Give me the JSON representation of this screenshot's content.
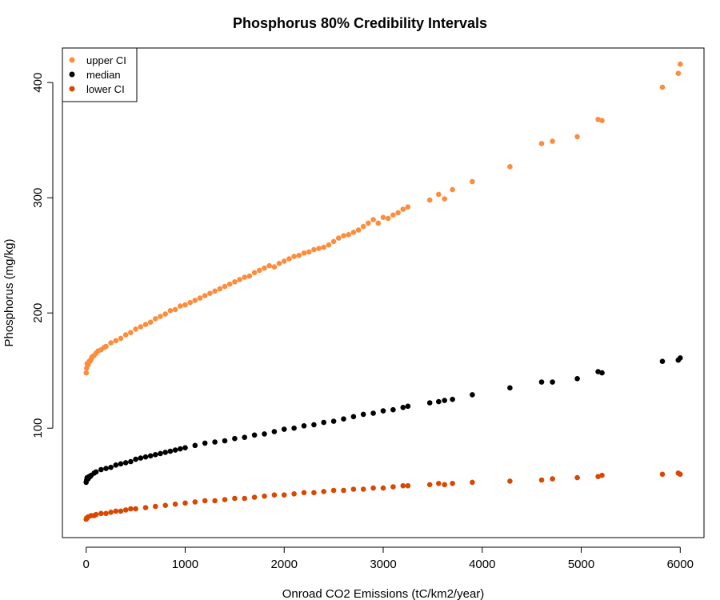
{
  "chart_data": {
    "type": "scatter",
    "title": "Phosphorus 80% Credibility Intervals",
    "xlabel": "Onroad CO2 Emissions (tC/km2/year)",
    "ylabel": "Phosphorus (mg/kg)",
    "xlim": [
      -240,
      6240
    ],
    "ylim": [
      5,
      430
    ],
    "xticks": [
      0,
      1000,
      2000,
      3000,
      4000,
      5000,
      6000
    ],
    "yticks": [
      100,
      200,
      300,
      400
    ],
    "grid": false,
    "legend_position": "top-left",
    "series": [
      {
        "name": "upper CI",
        "color": "#fd8d3c",
        "points": [
          [
            0,
            148
          ],
          [
            5,
            152
          ],
          [
            10,
            156
          ],
          [
            20,
            155
          ],
          [
            30,
            158
          ],
          [
            40,
            158
          ],
          [
            50,
            160
          ],
          [
            60,
            162
          ],
          [
            80,
            163
          ],
          [
            100,
            165
          ],
          [
            120,
            167
          ],
          [
            150,
            168
          ],
          [
            180,
            170
          ],
          [
            200,
            171
          ],
          [
            250,
            174
          ],
          [
            300,
            176
          ],
          [
            350,
            178
          ],
          [
            400,
            181
          ],
          [
            450,
            183
          ],
          [
            500,
            186
          ],
          [
            550,
            188
          ],
          [
            600,
            190
          ],
          [
            650,
            192
          ],
          [
            700,
            195
          ],
          [
            750,
            197
          ],
          [
            800,
            199
          ],
          [
            850,
            202
          ],
          [
            900,
            203
          ],
          [
            950,
            206
          ],
          [
            1000,
            207
          ],
          [
            1050,
            209
          ],
          [
            1100,
            211
          ],
          [
            1150,
            213
          ],
          [
            1200,
            215
          ],
          [
            1250,
            217
          ],
          [
            1300,
            219
          ],
          [
            1350,
            221
          ],
          [
            1400,
            223
          ],
          [
            1450,
            225
          ],
          [
            1500,
            227
          ],
          [
            1550,
            229
          ],
          [
            1600,
            231
          ],
          [
            1650,
            232
          ],
          [
            1700,
            235
          ],
          [
            1750,
            237
          ],
          [
            1800,
            239
          ],
          [
            1850,
            241
          ],
          [
            1900,
            240
          ],
          [
            1950,
            243
          ],
          [
            2000,
            245
          ],
          [
            2050,
            247
          ],
          [
            2100,
            249
          ],
          [
            2150,
            250
          ],
          [
            2200,
            252
          ],
          [
            2250,
            253
          ],
          [
            2300,
            255
          ],
          [
            2350,
            256
          ],
          [
            2400,
            257
          ],
          [
            2450,
            259
          ],
          [
            2500,
            262
          ],
          [
            2550,
            265
          ],
          [
            2600,
            267
          ],
          [
            2650,
            268
          ],
          [
            2700,
            270
          ],
          [
            2750,
            272
          ],
          [
            2800,
            275
          ],
          [
            2850,
            278
          ],
          [
            2900,
            281
          ],
          [
            2950,
            278
          ],
          [
            3000,
            283
          ],
          [
            3050,
            282
          ],
          [
            3100,
            285
          ],
          [
            3150,
            287
          ],
          [
            3200,
            290
          ],
          [
            3250,
            292
          ],
          [
            3470,
            298
          ],
          [
            3560,
            303
          ],
          [
            3620,
            299
          ],
          [
            3700,
            307
          ],
          [
            3900,
            314
          ],
          [
            4280,
            327
          ],
          [
            4600,
            347
          ],
          [
            4710,
            349
          ],
          [
            4960,
            353
          ],
          [
            5170,
            368
          ],
          [
            5210,
            367
          ],
          [
            5820,
            396
          ],
          [
            5980,
            408
          ],
          [
            6000,
            416
          ]
        ]
      },
      {
        "name": "median",
        "color": "#000000",
        "points": [
          [
            0,
            53
          ],
          [
            5,
            55
          ],
          [
            10,
            57
          ],
          [
            20,
            56
          ],
          [
            30,
            58
          ],
          [
            40,
            58
          ],
          [
            50,
            59
          ],
          [
            80,
            61
          ],
          [
            100,
            62
          ],
          [
            150,
            64
          ],
          [
            200,
            65
          ],
          [
            250,
            66
          ],
          [
            300,
            68
          ],
          [
            350,
            69
          ],
          [
            400,
            70
          ],
          [
            450,
            71
          ],
          [
            500,
            73
          ],
          [
            550,
            74
          ],
          [
            600,
            75
          ],
          [
            650,
            76
          ],
          [
            700,
            77
          ],
          [
            750,
            78
          ],
          [
            800,
            79
          ],
          [
            850,
            80
          ],
          [
            900,
            81
          ],
          [
            950,
            82
          ],
          [
            1000,
            83
          ],
          [
            1100,
            85
          ],
          [
            1200,
            87
          ],
          [
            1300,
            88
          ],
          [
            1400,
            89
          ],
          [
            1500,
            91
          ],
          [
            1600,
            92
          ],
          [
            1700,
            94
          ],
          [
            1800,
            95
          ],
          [
            1900,
            97
          ],
          [
            2000,
            99
          ],
          [
            2100,
            100
          ],
          [
            2200,
            102
          ],
          [
            2300,
            103
          ],
          [
            2400,
            105
          ],
          [
            2500,
            106
          ],
          [
            2600,
            108
          ],
          [
            2700,
            110
          ],
          [
            2800,
            112
          ],
          [
            2900,
            113
          ],
          [
            3000,
            115
          ],
          [
            3100,
            116
          ],
          [
            3200,
            118
          ],
          [
            3250,
            119
          ],
          [
            3470,
            122
          ],
          [
            3560,
            123
          ],
          [
            3620,
            124
          ],
          [
            3700,
            125
          ],
          [
            3900,
            129
          ],
          [
            4280,
            135
          ],
          [
            4600,
            140
          ],
          [
            4710,
            140
          ],
          [
            4960,
            143
          ],
          [
            5170,
            149
          ],
          [
            5210,
            148
          ],
          [
            5820,
            158
          ],
          [
            5980,
            159
          ],
          [
            6000,
            161
          ]
        ]
      },
      {
        "name": "lower CI",
        "color": "#d94801",
        "points": [
          [
            0,
            21
          ],
          [
            5,
            22
          ],
          [
            10,
            22
          ],
          [
            20,
            23
          ],
          [
            50,
            24
          ],
          [
            80,
            24
          ],
          [
            100,
            25
          ],
          [
            150,
            26
          ],
          [
            200,
            26
          ],
          [
            250,
            27
          ],
          [
            300,
            28
          ],
          [
            350,
            28
          ],
          [
            400,
            29
          ],
          [
            450,
            30
          ],
          [
            500,
            30
          ],
          [
            600,
            31
          ],
          [
            700,
            32
          ],
          [
            800,
            33
          ],
          [
            900,
            34
          ],
          [
            1000,
            35
          ],
          [
            1100,
            36
          ],
          [
            1200,
            37
          ],
          [
            1300,
            37
          ],
          [
            1400,
            38
          ],
          [
            1500,
            39
          ],
          [
            1600,
            39
          ],
          [
            1700,
            40
          ],
          [
            1800,
            41
          ],
          [
            1900,
            42
          ],
          [
            2000,
            42
          ],
          [
            2100,
            43
          ],
          [
            2200,
            44
          ],
          [
            2300,
            44
          ],
          [
            2400,
            45
          ],
          [
            2500,
            46
          ],
          [
            2600,
            46
          ],
          [
            2700,
            47
          ],
          [
            2800,
            47
          ],
          [
            2900,
            48
          ],
          [
            3000,
            48
          ],
          [
            3100,
            49
          ],
          [
            3200,
            50
          ],
          [
            3250,
            50
          ],
          [
            3470,
            51
          ],
          [
            3560,
            52
          ],
          [
            3620,
            51
          ],
          [
            3700,
            52
          ],
          [
            3900,
            53
          ],
          [
            4280,
            54
          ],
          [
            4600,
            55
          ],
          [
            4710,
            56
          ],
          [
            4960,
            57
          ],
          [
            5170,
            58
          ],
          [
            5210,
            59
          ],
          [
            5820,
            60
          ],
          [
            5980,
            61
          ],
          [
            6000,
            60
          ]
        ]
      }
    ]
  }
}
